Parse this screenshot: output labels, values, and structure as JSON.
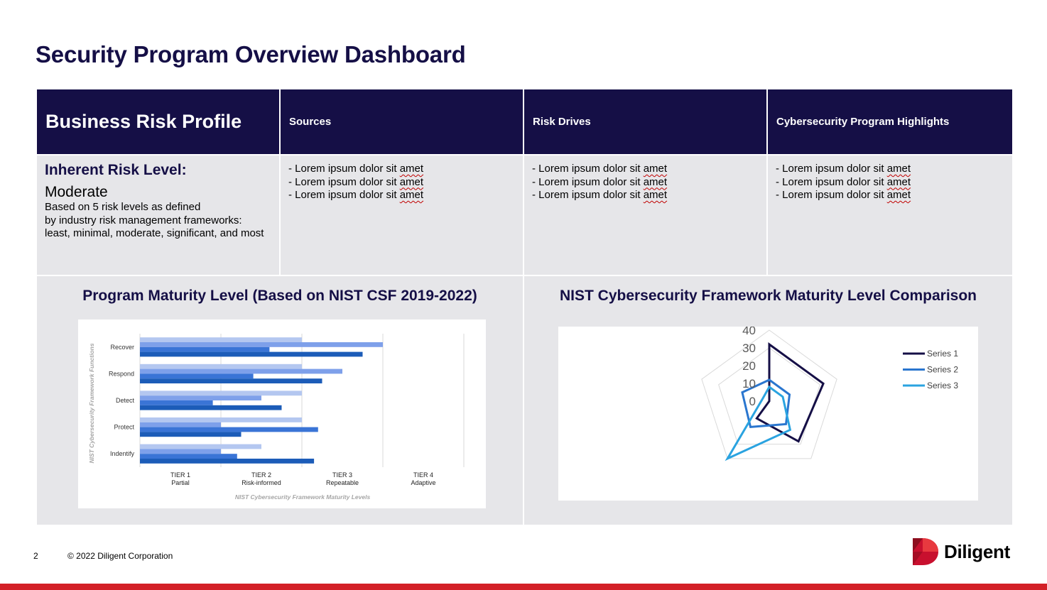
{
  "page": {
    "title": "Security Program Overview Dashboard",
    "page_number": "2",
    "copyright": "© 2022 Diligent Corporation",
    "logo_text": "Diligent"
  },
  "table": {
    "headers": [
      "Business Risk Profile",
      "Sources",
      "Risk Drives",
      "Cybersecurity Program Highlights"
    ],
    "risk_label": "Inherent Risk Level:",
    "risk_value": "Moderate",
    "risk_desc_lines": [
      "Based on 5 risk levels as defined",
      "by industry risk management frameworks:",
      "least, minimal, moderate, significant, and most"
    ],
    "bullet_prefix": "- Lorem ipsum dolor sit ",
    "bullet_word": "amet",
    "columns": [
      {
        "bullets": [
          "- Lorem ipsum dolor sit amet",
          "- Lorem ipsum dolor sit amet",
          "- Lorem ipsum dolor sit amet"
        ]
      },
      {
        "bullets": [
          "- Lorem ipsum dolor sit amet",
          "- Lorem ipsum dolor sit amet",
          "- Lorem ipsum dolor sit amet"
        ]
      },
      {
        "bullets": [
          "- Lorem ipsum dolor sit amet",
          "- Lorem ipsum dolor sit amet",
          "- Lorem ipsum dolor sit amet"
        ]
      }
    ]
  },
  "colors": {
    "navy": "#150f46",
    "cell_gray": "#e6e6e9",
    "brand_red": "#d32027",
    "bar_series": [
      "#b4c7f0",
      "#7ea0ea",
      "#3a74d6",
      "#1c5cb8"
    ],
    "radar_series": [
      "#150f46",
      "#2a76cf",
      "#2aa3e0"
    ]
  },
  "chart_data": [
    {
      "type": "bar",
      "orientation": "horizontal",
      "title": "Program Maturity Level (Based on NIST CSF 2019-2022)",
      "xlabel": "NIST Cybersecurity Framework Maturity Levels",
      "ylabel": "NIST Cybersecurity Framework Functions",
      "categories": [
        "Recover",
        "Respond",
        "Detect",
        "Protect",
        "Indentify"
      ],
      "x_ticks": [
        {
          "line1": "TIER 1",
          "line2": "Partial"
        },
        {
          "line1": "TIER 2",
          "line2": "Risk-informed"
        },
        {
          "line1": "TIER 3",
          "line2": "Repeatable"
        },
        {
          "line1": "TIER 4",
          "line2": "Adaptive"
        }
      ],
      "xlim": [
        0,
        4
      ],
      "grid": true,
      "series": [
        {
          "values": [
            2.0,
            2.0,
            2.0,
            2.0,
            1.5
          ]
        },
        {
          "values": [
            3.0,
            2.5,
            1.5,
            1.0,
            1.0
          ]
        },
        {
          "values": [
            1.6,
            1.4,
            0.9,
            2.2,
            1.2
          ]
        },
        {
          "values": [
            2.75,
            2.25,
            1.75,
            1.25,
            2.15
          ]
        }
      ]
    },
    {
      "type": "radar",
      "title": "NIST Cybersecurity Framework Maturity Level Comparison",
      "axis_ticks": [
        "0",
        "10",
        "20",
        "30",
        "40"
      ],
      "rmax": 40,
      "axes_count": 5,
      "legend_position": "top-right",
      "series": [
        {
          "name": "Series 1",
          "values": [
            32,
            32,
            28,
            12,
            0
          ]
        },
        {
          "name": "Series 2",
          "values": [
            12,
            12,
            16,
            18,
            16
          ]
        },
        {
          "name": "Series 3",
          "values": [
            8,
            8,
            20,
            40,
            4
          ]
        }
      ]
    }
  ]
}
